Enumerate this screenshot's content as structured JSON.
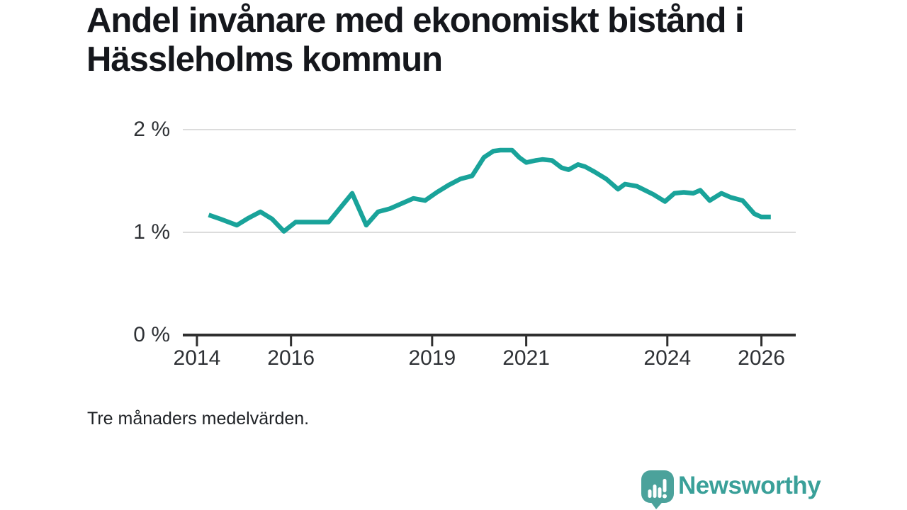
{
  "title": "Andel invånare med ekonomiskt bistånd i Hässleholms kommun",
  "footnote": "Tre månaders medelvärden.",
  "brand": {
    "name": "Newsworthy"
  },
  "colors": {
    "line": "#19a39a",
    "grid": "#dcdcdc",
    "axis": "#2f2f2f",
    "title_text": "#15171c",
    "tick_text": "#2e3135",
    "brand_text": "#3aa099",
    "brand_icon": "#4ba29b"
  },
  "chart_data": {
    "type": "line",
    "title": "Andel invånare med ekonomiskt bistånd i Hässleholms kommun",
    "note": "Tre månaders medelvärden.",
    "unit": "%",
    "xlabel": "",
    "ylabel": "",
    "legend": "none",
    "grid": "horizontal-only",
    "xlim": [
      2013.7,
      2026.73
    ],
    "ylim": [
      0,
      2.2
    ],
    "x_ticks": [
      {
        "value": 2014,
        "label": "2014"
      },
      {
        "value": 2016,
        "label": "2016"
      },
      {
        "value": 2019,
        "label": "2019"
      },
      {
        "value": 2021,
        "label": "2021"
      },
      {
        "value": 2024,
        "label": "2024"
      },
      {
        "value": 2026,
        "label": "2026"
      }
    ],
    "y_ticks": [
      {
        "value": 0,
        "label": "0 %"
      },
      {
        "value": 1,
        "label": "1 %"
      },
      {
        "value": 2,
        "label": "2 %"
      }
    ],
    "series": [
      {
        "name": "Andel invånare med ekonomiskt bistånd",
        "color": "#19a39a",
        "points": [
          [
            2014.25,
            1.17
          ],
          [
            2014.5,
            1.13
          ],
          [
            2014.85,
            1.07
          ],
          [
            2015.1,
            1.14
          ],
          [
            2015.35,
            1.2
          ],
          [
            2015.6,
            1.13
          ],
          [
            2015.85,
            1.01
          ],
          [
            2016.1,
            1.1
          ],
          [
            2016.45,
            1.1
          ],
          [
            2016.8,
            1.1
          ],
          [
            2017.3,
            1.38
          ],
          [
            2017.6,
            1.07
          ],
          [
            2017.85,
            1.2
          ],
          [
            2018.1,
            1.23
          ],
          [
            2018.35,
            1.28
          ],
          [
            2018.6,
            1.33
          ],
          [
            2018.85,
            1.31
          ],
          [
            2019.1,
            1.39
          ],
          [
            2019.35,
            1.46
          ],
          [
            2019.6,
            1.52
          ],
          [
            2019.85,
            1.55
          ],
          [
            2020.1,
            1.73
          ],
          [
            2020.3,
            1.79
          ],
          [
            2020.45,
            1.8
          ],
          [
            2020.7,
            1.8
          ],
          [
            2020.85,
            1.73
          ],
          [
            2021.0,
            1.68
          ],
          [
            2021.2,
            1.7
          ],
          [
            2021.35,
            1.71
          ],
          [
            2021.55,
            1.7
          ],
          [
            2021.75,
            1.63
          ],
          [
            2021.9,
            1.61
          ],
          [
            2022.1,
            1.66
          ],
          [
            2022.25,
            1.64
          ],
          [
            2022.45,
            1.59
          ],
          [
            2022.7,
            1.52
          ],
          [
            2022.95,
            1.42
          ],
          [
            2023.1,
            1.47
          ],
          [
            2023.35,
            1.45
          ],
          [
            2023.7,
            1.37
          ],
          [
            2023.95,
            1.3
          ],
          [
            2024.15,
            1.38
          ],
          [
            2024.35,
            1.39
          ],
          [
            2024.55,
            1.38
          ],
          [
            2024.7,
            1.41
          ],
          [
            2024.9,
            1.31
          ],
          [
            2025.15,
            1.38
          ],
          [
            2025.35,
            1.34
          ],
          [
            2025.6,
            1.31
          ],
          [
            2025.85,
            1.18
          ],
          [
            2026.0,
            1.15
          ],
          [
            2026.2,
            1.15
          ]
        ]
      }
    ]
  }
}
